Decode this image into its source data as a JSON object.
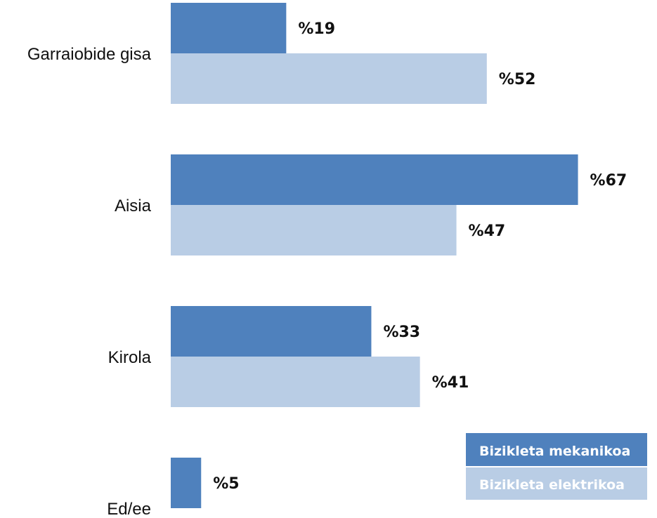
{
  "chart_data": {
    "type": "bar",
    "orientation": "horizontal",
    "categories": [
      "Garraiobide gisa",
      "Aisia",
      "Kirola",
      "Ed/ee"
    ],
    "series": [
      {
        "name": "Bizikleta mekanikoa",
        "color": "#4f81bd",
        "values": [
          19,
          67,
          33,
          5
        ],
        "value_labels": [
          "%19",
          "%67",
          "%33",
          "%5"
        ]
      },
      {
        "name": "Bizikleta elektrikoa",
        "color": "#b9cde5",
        "values": [
          52,
          47,
          41,
          null
        ],
        "value_labels": [
          "%52",
          "%47",
          "%41",
          ""
        ]
      }
    ],
    "xlim": [
      0,
      80
    ],
    "grid": false,
    "legend": "bottom-right"
  }
}
